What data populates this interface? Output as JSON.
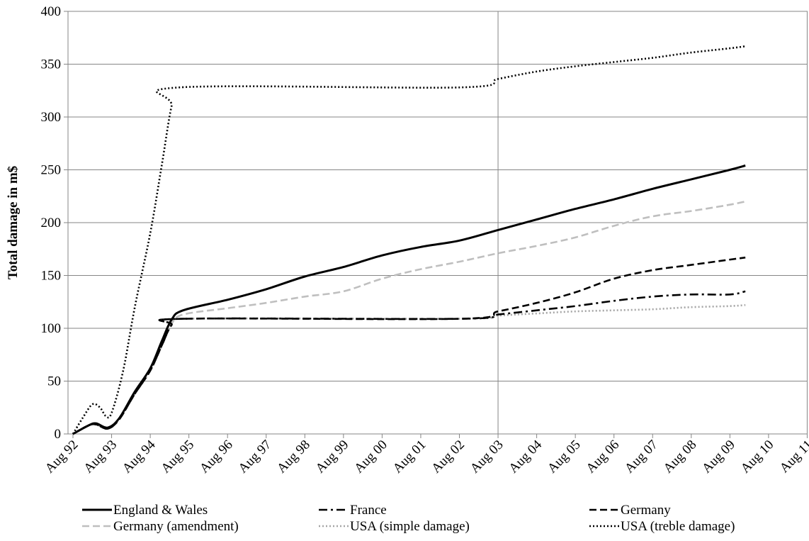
{
  "chart_data": {
    "type": "line",
    "title": "",
    "xlabel": "",
    "ylabel": "Total damage in m$",
    "ylim": [
      0,
      400
    ],
    "yticks": [
      "0",
      "50",
      "100",
      "150",
      "200",
      "250",
      "300",
      "350",
      "400"
    ],
    "xticks": [
      "Aug 92",
      "Aug 93",
      "Aug 94",
      "Aug 95",
      "Aug 96",
      "Aug 97",
      "Aug 98",
      "Aug 99",
      "Aug 00",
      "Aug 01",
      "Aug 02",
      "Aug 03",
      "Aug 04",
      "Aug 05",
      "Aug 06",
      "Aug 07",
      "Aug 08",
      "Aug 09",
      "Aug 10",
      "Aug 11"
    ],
    "x_unit": "years since Aug 92",
    "xlim": [
      0,
      19.45
    ],
    "grid": "horizontal gridlines; vertical lines at Aug 03 and Aug 11",
    "legend_position": "bottom",
    "series": [
      {
        "name": "England & Wales",
        "color": "#000000",
        "style": "solid",
        "points": [
          [
            0,
            0
          ],
          [
            0.4,
            8
          ],
          [
            0.6,
            10
          ],
          [
            0.9,
            6
          ],
          [
            1.2,
            15
          ],
          [
            1.6,
            40
          ],
          [
            2.0,
            62
          ],
          [
            2.3,
            88
          ],
          [
            2.55,
            108
          ],
          [
            2.85,
            117
          ],
          [
            4,
            127
          ],
          [
            5,
            137
          ],
          [
            6,
            149
          ],
          [
            7,
            158
          ],
          [
            8,
            169
          ],
          [
            9,
            177
          ],
          [
            10,
            183
          ],
          [
            11,
            193
          ],
          [
            12,
            203
          ],
          [
            13,
            213
          ],
          [
            14,
            222
          ],
          [
            15,
            232
          ],
          [
            16,
            241
          ],
          [
            17,
            250
          ],
          [
            17.4,
            254
          ]
        ]
      },
      {
        "name": "France",
        "color": "#000000",
        "style": "dashdot",
        "points": [
          [
            0,
            0
          ],
          [
            0.4,
            8
          ],
          [
            0.6,
            9
          ],
          [
            0.9,
            5
          ],
          [
            1.2,
            14
          ],
          [
            1.6,
            38
          ],
          [
            2.0,
            60
          ],
          [
            2.3,
            84
          ],
          [
            2.55,
            103
          ],
          [
            2.85,
            109
          ],
          [
            10,
            109
          ],
          [
            11,
            113
          ],
          [
            12,
            117
          ],
          [
            13,
            121
          ],
          [
            14,
            126
          ],
          [
            15,
            130
          ],
          [
            16,
            132
          ],
          [
            17,
            132
          ],
          [
            17.4,
            135
          ]
        ]
      },
      {
        "name": "Germany",
        "color": "#000000",
        "style": "dashed",
        "points": [
          [
            0,
            0
          ],
          [
            0.4,
            8
          ],
          [
            0.6,
            9
          ],
          [
            0.9,
            5
          ],
          [
            1.2,
            14
          ],
          [
            1.6,
            38
          ],
          [
            2.0,
            60
          ],
          [
            2.3,
            84
          ],
          [
            2.55,
            103
          ],
          [
            2.85,
            109
          ],
          [
            10,
            109
          ],
          [
            11,
            116
          ],
          [
            12,
            124
          ],
          [
            13,
            134
          ],
          [
            14,
            147
          ],
          [
            15,
            155
          ],
          [
            16,
            160
          ],
          [
            17,
            165
          ],
          [
            17.4,
            167
          ]
        ]
      },
      {
        "name": "Germany (amendment)",
        "color": "#bfbfbf",
        "style": "dashed",
        "points": [
          [
            0,
            0
          ],
          [
            0.4,
            8
          ],
          [
            0.6,
            9
          ],
          [
            0.9,
            5
          ],
          [
            1.2,
            14
          ],
          [
            1.6,
            38
          ],
          [
            2.0,
            60
          ],
          [
            2.3,
            84
          ],
          [
            2.55,
            104
          ],
          [
            2.85,
            113
          ],
          [
            4,
            119
          ],
          [
            5,
            124
          ],
          [
            6,
            130
          ],
          [
            7,
            135
          ],
          [
            8,
            147
          ],
          [
            9,
            156
          ],
          [
            10,
            163
          ],
          [
            11,
            171
          ],
          [
            12,
            178
          ],
          [
            13,
            186
          ],
          [
            14,
            197
          ],
          [
            15,
            206
          ],
          [
            16,
            211
          ],
          [
            17,
            217
          ],
          [
            17.4,
            220
          ]
        ]
      },
      {
        "name": "USA (simple damage)",
        "color": "#a6a6a6",
        "style": "dotted",
        "points": [
          [
            0,
            0
          ],
          [
            0.4,
            8
          ],
          [
            0.6,
            9
          ],
          [
            0.9,
            5
          ],
          [
            1.2,
            14
          ],
          [
            1.6,
            38
          ],
          [
            2.0,
            60
          ],
          [
            2.3,
            84
          ],
          [
            2.55,
            103
          ],
          [
            2.85,
            109
          ],
          [
            10,
            109
          ],
          [
            11,
            112
          ],
          [
            12,
            114
          ],
          [
            13,
            116
          ],
          [
            14,
            117
          ],
          [
            15,
            118
          ],
          [
            16,
            120
          ],
          [
            17,
            121
          ],
          [
            17.4,
            122
          ]
        ]
      },
      {
        "name": "USA (treble damage)",
        "color": "#000000",
        "style": "dotted",
        "points": [
          [
            0,
            0
          ],
          [
            0.25,
            15
          ],
          [
            0.5,
            28
          ],
          [
            0.7,
            25
          ],
          [
            0.85,
            17
          ],
          [
            1.0,
            20
          ],
          [
            1.3,
            60
          ],
          [
            1.6,
            120
          ],
          [
            2.0,
            190
          ],
          [
            2.3,
            255
          ],
          [
            2.55,
            310
          ],
          [
            2.75,
            328
          ],
          [
            10,
            328
          ],
          [
            11,
            336
          ],
          [
            12,
            343
          ],
          [
            13,
            348
          ],
          [
            14,
            352
          ],
          [
            15,
            356
          ],
          [
            16,
            361
          ],
          [
            17,
            365
          ],
          [
            17.4,
            367
          ]
        ]
      }
    ]
  }
}
